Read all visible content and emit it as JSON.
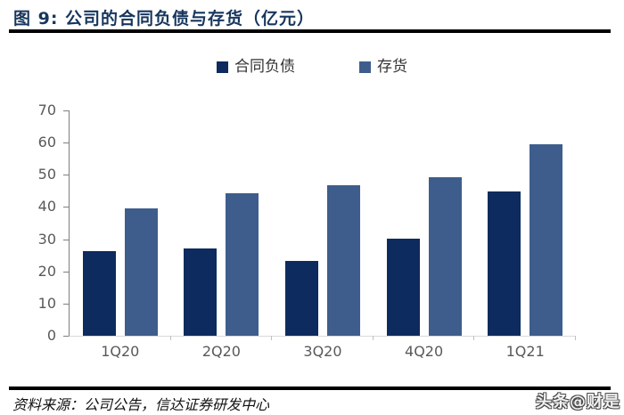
{
  "header": {
    "title": "图 9:  公司的合同负债与存货（亿元）"
  },
  "chart_data": {
    "type": "bar",
    "title": "公司的合同负债与存货（亿元）",
    "categories": [
      "1Q20",
      "2Q20",
      "3Q20",
      "4Q20",
      "1Q21"
    ],
    "series": [
      {
        "name": "合同负债",
        "key": "contract-liabilities",
        "color": "#0d2b5e",
        "values": [
          26.3,
          27.0,
          23.3,
          30.3,
          44.7
        ]
      },
      {
        "name": "存货",
        "key": "inventory",
        "color": "#3e5d8c",
        "values": [
          39.7,
          44.3,
          46.7,
          49.3,
          59.4
        ]
      }
    ],
    "xlabel": "",
    "ylabel": "",
    "ylim": [
      0,
      70
    ],
    "ytick_step": 10,
    "grid": false,
    "legend_position": "top"
  },
  "footer": {
    "source": "资料来源：公司公告，信达证券研发中心",
    "watermark": "头条@财是"
  }
}
